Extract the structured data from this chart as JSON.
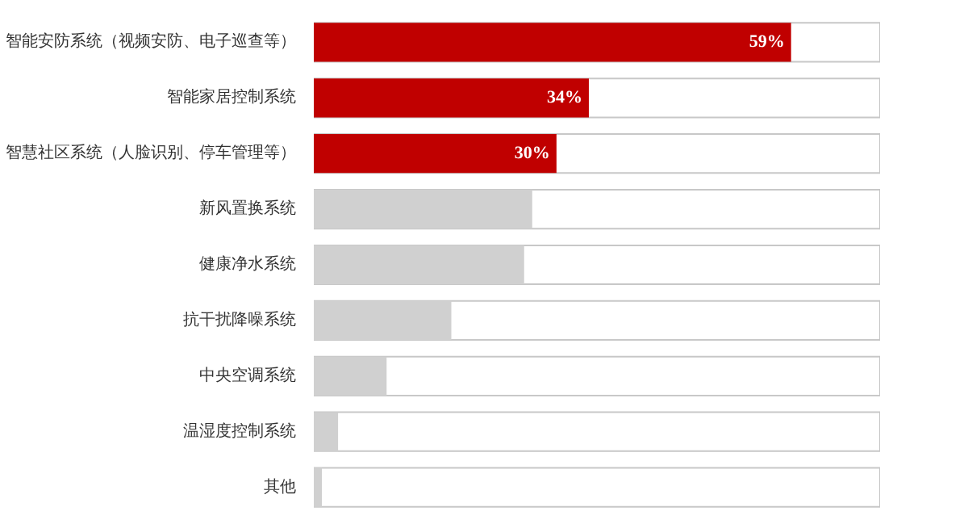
{
  "chart_data": {
    "type": "bar",
    "orientation": "horizontal",
    "categories": [
      "智能安防系统（视频安防、电子巡查等）",
      "智能家居控制系统",
      "智慧社区系统（人脸识别、停车管理等）",
      "新风置换系统",
      "健康净水系统",
      "抗干扰降噪系统",
      "中央空调系统",
      "温湿度控制系统",
      "其他"
    ],
    "values": [
      59,
      34,
      30,
      27,
      26,
      17,
      9,
      3,
      1
    ],
    "colors": [
      "#c00000",
      "#c00000",
      "#c00000",
      "#d0d0d0",
      "#d0d0d0",
      "#d0d0d0",
      "#d0d0d0",
      "#d0d0d0",
      "#d0d0d0"
    ],
    "value_labels": [
      "59%",
      "34%",
      "30%",
      null,
      null,
      null,
      null,
      null,
      null
    ],
    "xlim": [
      0,
      70
    ],
    "tick_labels": "y",
    "grid": false
  }
}
